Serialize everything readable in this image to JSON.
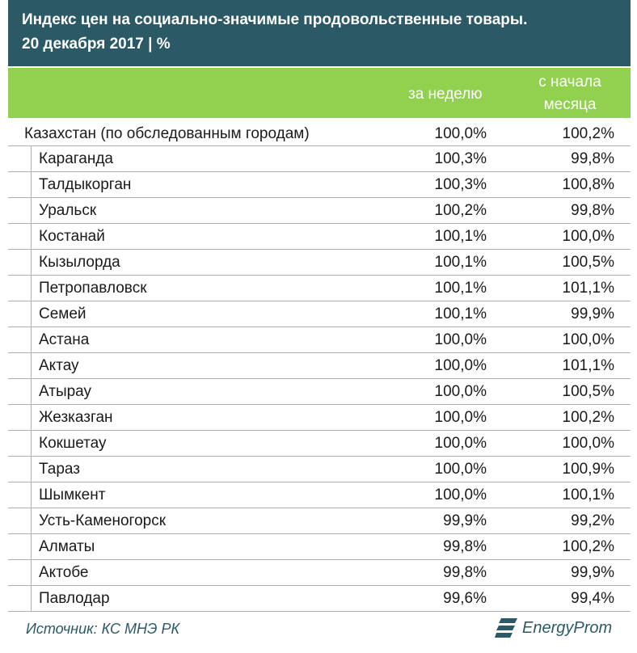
{
  "title": {
    "line1": "Индекс цен на социально-значимые продовольственные товары.",
    "line2": "20 декабря 2017  |  %"
  },
  "columns": {
    "week": "за неделю",
    "month": "с начала месяца"
  },
  "rows": [
    {
      "name": "Казахстан (по обследованным городам)",
      "week": "100,0%",
      "month": "100,2%"
    },
    {
      "name": "Караганда",
      "week": "100,3%",
      "month": "99,8%"
    },
    {
      "name": "Талдыкорган",
      "week": "100,3%",
      "month": "100,8%"
    },
    {
      "name": "Уральск",
      "week": "100,2%",
      "month": "99,8%"
    },
    {
      "name": "Костанай",
      "week": "100,1%",
      "month": "100,0%"
    },
    {
      "name": "Кызылорда",
      "week": "100,1%",
      "month": "100,5%"
    },
    {
      "name": "Петропавловск",
      "week": "100,1%",
      "month": "101,1%"
    },
    {
      "name": "Семей",
      "week": "100,1%",
      "month": "99,9%"
    },
    {
      "name": "Астана",
      "week": "100,0%",
      "month": "100,0%"
    },
    {
      "name": "Актау",
      "week": "100,0%",
      "month": "101,1%"
    },
    {
      "name": "Атырау",
      "week": "100,0%",
      "month": "100,5%"
    },
    {
      "name": "Жезказган",
      "week": "100,0%",
      "month": "100,2%"
    },
    {
      "name": "Кокшетау",
      "week": "100,0%",
      "month": "100,0%"
    },
    {
      "name": "Тараз",
      "week": "100,0%",
      "month": "100,9%"
    },
    {
      "name": "Шымкент",
      "week": "100,0%",
      "month": "100,1%"
    },
    {
      "name": "Усть-Каменогорск",
      "week": "99,9%",
      "month": "99,2%"
    },
    {
      "name": "Алматы",
      "week": "99,8%",
      "month": "100,2%"
    },
    {
      "name": "Актобе",
      "week": "99,8%",
      "month": "99,9%"
    },
    {
      "name": "Павлодар",
      "week": "99,6%",
      "month": "99,4%"
    }
  ],
  "footer": {
    "source": "Источник: КС МНЭ РК",
    "brand": "EnergyProm",
    "brand_icon": "energyprom-logo-icon"
  },
  "colors": {
    "title_bg": "#2b5a66",
    "header_bg": "#92d050",
    "accent_text": "#2b5a66"
  }
}
